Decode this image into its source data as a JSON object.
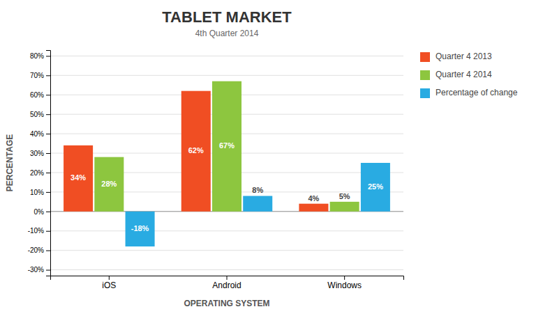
{
  "chart_data": {
    "type": "bar",
    "title": "TABLET MARKET",
    "subtitle": "4th Quarter 2014",
    "x_label": "OPERATING SYSTEM",
    "y_label": "PERCENTAGE",
    "categories": [
      "iOS",
      "Android",
      "Windows"
    ],
    "series": [
      {
        "name": "Quarter 4 2013",
        "color": "#F04E23",
        "values": [
          34,
          62,
          4
        ],
        "value_labels": [
          "34%",
          "62%",
          "4%"
        ]
      },
      {
        "name": "Quarter 4 2014",
        "color": "#8DC63F",
        "values": [
          28,
          67,
          5
        ],
        "value_labels": [
          "28%",
          "67%",
          "5%"
        ]
      },
      {
        "name": "Percentage of change",
        "color": "#29ABE2",
        "values": [
          -18,
          8,
          25
        ],
        "value_labels": [
          "-18%",
          "8%",
          "25%"
        ]
      }
    ],
    "ylim": [
      -33,
      83
    ],
    "yticks": [
      {
        "value": -30,
        "label": "-30%"
      },
      {
        "value": -20,
        "label": "-20%"
      },
      {
        "value": -10,
        "label": "-10%"
      },
      {
        "value": 0,
        "label": "0%"
      },
      {
        "value": 10,
        "label": "10%"
      },
      {
        "value": 20,
        "label": "20%"
      },
      {
        "value": 30,
        "label": "30%"
      },
      {
        "value": 40,
        "label": "40%"
      },
      {
        "value": 50,
        "label": "50%"
      },
      {
        "value": 60,
        "label": "60%"
      },
      {
        "value": 70,
        "label": "70%"
      },
      {
        "value": 80,
        "label": "80%"
      }
    ],
    "grid": true,
    "legend": "right",
    "data_labels": true
  }
}
